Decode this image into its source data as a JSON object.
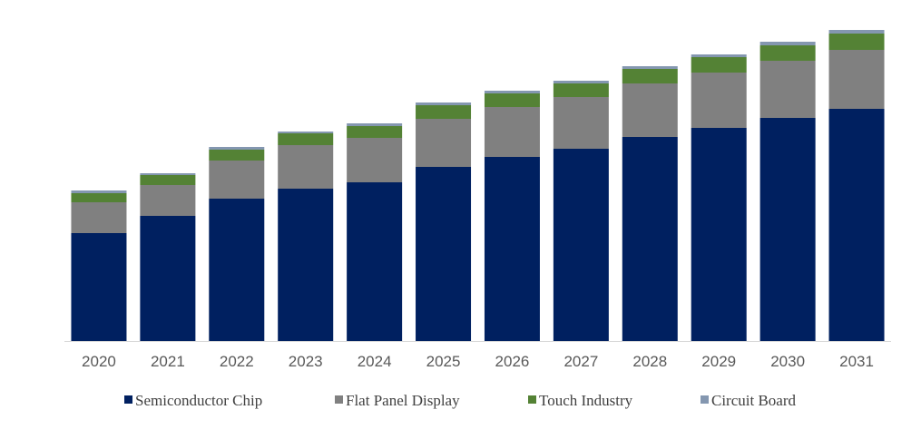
{
  "chart_data": {
    "type": "bar",
    "stacked": true,
    "title": "",
    "xlabel": "",
    "ylabel": "",
    "y_axis_shown": false,
    "grid": false,
    "legend_position": "bottom",
    "categories": [
      "2020",
      "2021",
      "2022",
      "2023",
      "2024",
      "2025",
      "2026",
      "2027",
      "2028",
      "2029",
      "2030",
      "2031"
    ],
    "series": [
      {
        "name": "Semiconductor Chip",
        "color": "#002060",
        "values": [
          119,
          138,
          157,
          168,
          175,
          192,
          203,
          212,
          225,
          235,
          246,
          256
        ]
      },
      {
        "name": "Flat Panel Display",
        "color": "#808080",
        "values": [
          34,
          34,
          42,
          48,
          49,
          53,
          55,
          57,
          59,
          61,
          63,
          65
        ]
      },
      {
        "name": "Touch Industry",
        "color": "#548235",
        "values": [
          10,
          11,
          12,
          13,
          13,
          15,
          15,
          15,
          16,
          17,
          17,
          18
        ]
      },
      {
        "name": "Circuit Board",
        "color": "#8497B0",
        "values": [
          3,
          2,
          3,
          2,
          3,
          3,
          3,
          3,
          3,
          3,
          4,
          4
        ]
      }
    ],
    "ylim": [
      0,
      345
    ]
  }
}
